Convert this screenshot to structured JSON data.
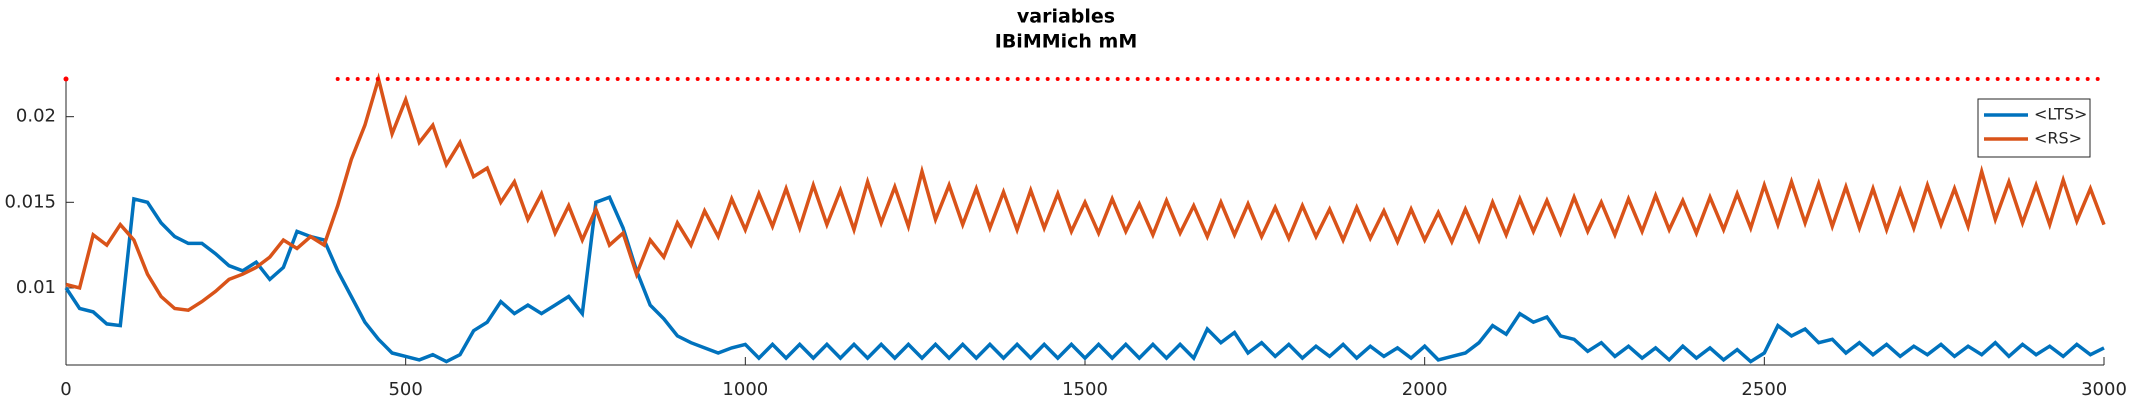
{
  "chart_data": {
    "type": "line",
    "title": "variables",
    "subtitle": "IBiMMich mM",
    "x": [
      0,
      20,
      40,
      60,
      80,
      100,
      120,
      140,
      160,
      180,
      200,
      220,
      240,
      260,
      280,
      300,
      320,
      340,
      360,
      380,
      400,
      420,
      440,
      460,
      480,
      500,
      520,
      540,
      560,
      580,
      600,
      620,
      640,
      660,
      680,
      700,
      720,
      740,
      760,
      780,
      800,
      820,
      840,
      860,
      880,
      900,
      920,
      940,
      960,
      980,
      1000,
      1020,
      1040,
      1060,
      1080,
      1100,
      1120,
      1140,
      1160,
      1180,
      1200,
      1220,
      1240,
      1260,
      1280,
      1300,
      1320,
      1340,
      1360,
      1380,
      1400,
      1420,
      1440,
      1460,
      1480,
      1500,
      1520,
      1540,
      1560,
      1580,
      1600,
      1620,
      1640,
      1660,
      1680,
      1700,
      1720,
      1740,
      1760,
      1780,
      1800,
      1820,
      1840,
      1860,
      1880,
      1900,
      1920,
      1940,
      1960,
      1980,
      2000,
      2020,
      2040,
      2060,
      2080,
      2100,
      2120,
      2140,
      2160,
      2180,
      2200,
      2220,
      2240,
      2260,
      2280,
      2300,
      2320,
      2340,
      2360,
      2380,
      2400,
      2420,
      2440,
      2460,
      2480,
      2500,
      2520,
      2540,
      2560,
      2580,
      2600,
      2620,
      2640,
      2660,
      2680,
      2700,
      2720,
      2740,
      2760,
      2780,
      2800,
      2820,
      2840,
      2860,
      2880,
      2900,
      2920,
      2940,
      2960,
      2980,
      3000
    ],
    "series": [
      {
        "name": "<LTS>",
        "color": "#0072bd",
        "values": [
          0.01,
          0.0088,
          0.0086,
          0.0079,
          0.0078,
          0.0152,
          0.015,
          0.0138,
          0.013,
          0.0126,
          0.0126,
          0.012,
          0.0113,
          0.011,
          0.0115,
          0.0105,
          0.0112,
          0.0133,
          0.013,
          0.0128,
          0.011,
          0.0095,
          0.008,
          0.007,
          0.0062,
          0.006,
          0.0058,
          0.0061,
          0.0057,
          0.0061,
          0.0075,
          0.008,
          0.0092,
          0.0085,
          0.009,
          0.0085,
          0.009,
          0.0095,
          0.0085,
          0.015,
          0.0153,
          0.0135,
          0.011,
          0.009,
          0.0082,
          0.0072,
          0.0068,
          0.0065,
          0.0062,
          0.0065,
          0.0067,
          0.0059,
          0.0067,
          0.0059,
          0.0067,
          0.0059,
          0.0067,
          0.0059,
          0.0067,
          0.0059,
          0.0067,
          0.0059,
          0.0067,
          0.0059,
          0.0067,
          0.0059,
          0.0067,
          0.0059,
          0.0067,
          0.0059,
          0.0067,
          0.0059,
          0.0067,
          0.0059,
          0.0067,
          0.0059,
          0.0067,
          0.0059,
          0.0067,
          0.0059,
          0.0067,
          0.0059,
          0.0067,
          0.0059,
          0.0076,
          0.0068,
          0.0074,
          0.0062,
          0.0068,
          0.006,
          0.0067,
          0.0059,
          0.0066,
          0.006,
          0.0067,
          0.0059,
          0.0066,
          0.006,
          0.0065,
          0.0059,
          0.0066,
          0.0058,
          0.006,
          0.0062,
          0.0068,
          0.0078,
          0.0073,
          0.0085,
          0.008,
          0.0083,
          0.0072,
          0.007,
          0.0063,
          0.0068,
          0.006,
          0.0066,
          0.0059,
          0.0065,
          0.0058,
          0.0066,
          0.0059,
          0.0065,
          0.0058,
          0.0064,
          0.0057,
          0.0062,
          0.0078,
          0.0072,
          0.0076,
          0.0068,
          0.007,
          0.0062,
          0.0068,
          0.0061,
          0.0067,
          0.006,
          0.0066,
          0.0061,
          0.0067,
          0.006,
          0.0066,
          0.0061,
          0.0068,
          0.006,
          0.0067,
          0.0061,
          0.0066,
          0.006,
          0.0067,
          0.0061,
          0.0065
        ]
      },
      {
        "name": "<RS>",
        "color": "#d95319",
        "values": [
          0.0102,
          0.01,
          0.0131,
          0.0125,
          0.0137,
          0.0128,
          0.0108,
          0.0095,
          0.0088,
          0.0087,
          0.0092,
          0.0098,
          0.0105,
          0.0108,
          0.0112,
          0.0118,
          0.0128,
          0.0123,
          0.013,
          0.0125,
          0.0148,
          0.0175,
          0.0195,
          0.0222,
          0.019,
          0.021,
          0.0185,
          0.0195,
          0.0172,
          0.0185,
          0.0165,
          0.017,
          0.015,
          0.0162,
          0.014,
          0.0155,
          0.0132,
          0.0148,
          0.0128,
          0.0146,
          0.0125,
          0.0132,
          0.0108,
          0.0128,
          0.0118,
          0.0138,
          0.0125,
          0.0145,
          0.013,
          0.0152,
          0.0134,
          0.0155,
          0.0136,
          0.0158,
          0.0135,
          0.016,
          0.0137,
          0.0157,
          0.0134,
          0.0162,
          0.0138,
          0.0159,
          0.0136,
          0.0168,
          0.014,
          0.016,
          0.0137,
          0.0158,
          0.0135,
          0.0156,
          0.0134,
          0.0157,
          0.0135,
          0.0155,
          0.0133,
          0.015,
          0.0132,
          0.0152,
          0.0133,
          0.0149,
          0.0131,
          0.0151,
          0.0132,
          0.0148,
          0.013,
          0.015,
          0.0131,
          0.0149,
          0.013,
          0.0147,
          0.0129,
          0.0148,
          0.013,
          0.0146,
          0.0128,
          0.0147,
          0.0129,
          0.0145,
          0.0127,
          0.0146,
          0.0128,
          0.0144,
          0.0127,
          0.0146,
          0.0128,
          0.015,
          0.0131,
          0.0152,
          0.0133,
          0.0151,
          0.0132,
          0.0153,
          0.0133,
          0.015,
          0.0131,
          0.0152,
          0.0133,
          0.0154,
          0.0134,
          0.0151,
          0.0132,
          0.0153,
          0.0134,
          0.0155,
          0.0135,
          0.016,
          0.0137,
          0.0162,
          0.0138,
          0.0161,
          0.0136,
          0.0159,
          0.0135,
          0.0158,
          0.0134,
          0.0157,
          0.0135,
          0.016,
          0.0137,
          0.0158,
          0.0136,
          0.0168,
          0.014,
          0.0162,
          0.0138,
          0.016,
          0.0137,
          0.0163,
          0.0139,
          0.0158,
          0.0137
        ]
      }
    ],
    "threshold": {
      "color": "#ff0000",
      "style": "dotted",
      "x": [
        0,
        200,
        400,
        3000
      ],
      "values": [
        0.0222,
        null,
        0.0222,
        0.0222
      ]
    },
    "xlim": [
      0,
      3000
    ],
    "xticks": [
      0,
      500,
      1000,
      1500,
      2000,
      2500,
      3000
    ],
    "ylim": [
      0.0055,
      0.0222
    ],
    "yticks": [
      0.01,
      0.015,
      0.02
    ],
    "legend": "top-right"
  }
}
